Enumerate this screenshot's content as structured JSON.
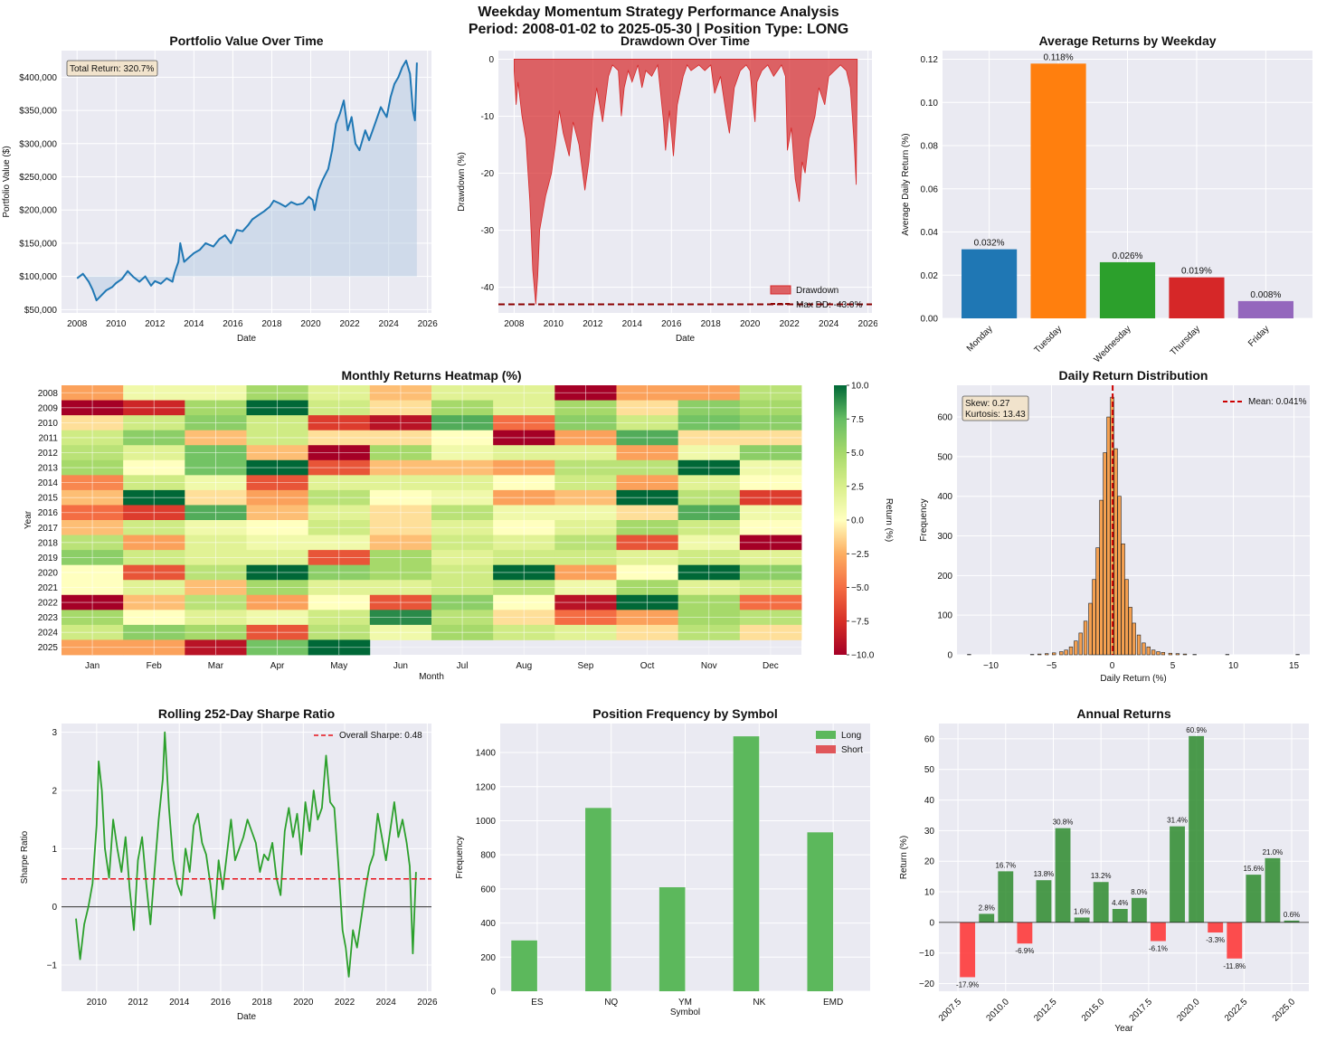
{
  "figure": {
    "title_line1": "Weekday Momentum Strategy Performance Analysis",
    "title_line2": "Period: 2008-01-02 to 2025-05-30 | Position Type: LONG"
  },
  "chart_data": [
    {
      "id": "portfolio",
      "type": "line",
      "title": "Portfolio Value Over Time",
      "xlabel": "Date",
      "ylabel": "Portfolio Value ($)",
      "xlim": [
        2007.2,
        2026.2
      ],
      "ylim": [
        45000,
        440000
      ],
      "xticks": [
        2008,
        2010,
        2012,
        2014,
        2016,
        2018,
        2020,
        2022,
        2024,
        2026
      ],
      "yticks": [
        50000,
        100000,
        150000,
        200000,
        250000,
        300000,
        350000,
        400000
      ],
      "ytick_labels": [
        "$50,000",
        "$100,000",
        "$150,000",
        "$200,000",
        "$250,000",
        "$300,000",
        "$350,000",
        "$400,000"
      ],
      "baseline": 100000,
      "annotation": "Total Return: 320.7%",
      "color": "#1f77b4",
      "fill_color": "#b0c8e0",
      "x": [
        2008.0,
        2008.3,
        2008.6,
        2008.8,
        2009.0,
        2009.2,
        2009.5,
        2009.8,
        2010.0,
        2010.3,
        2010.6,
        2010.9,
        2011.2,
        2011.5,
        2011.8,
        2012.0,
        2012.3,
        2012.6,
        2012.9,
        2013.0,
        2013.2,
        2013.3,
        2013.5,
        2013.8,
        2014.0,
        2014.3,
        2014.6,
        2015.0,
        2015.3,
        2015.6,
        2015.9,
        2016.2,
        2016.5,
        2016.8,
        2017.0,
        2017.3,
        2017.6,
        2017.9,
        2018.1,
        2018.4,
        2018.7,
        2019.0,
        2019.3,
        2019.6,
        2019.9,
        2020.1,
        2020.2,
        2020.4,
        2020.6,
        2020.9,
        2021.1,
        2021.3,
        2021.5,
        2021.7,
        2021.9,
        2022.1,
        2022.3,
        2022.5,
        2022.8,
        2023.0,
        2023.3,
        2023.6,
        2023.9,
        2024.1,
        2024.3,
        2024.5,
        2024.7,
        2024.9,
        2025.1,
        2025.25,
        2025.35,
        2025.45
      ],
      "y": [
        97000,
        104000,
        92000,
        80000,
        64000,
        70000,
        79000,
        84000,
        90000,
        96000,
        108000,
        99000,
        92000,
        100000,
        86000,
        93000,
        89000,
        97000,
        92000,
        105000,
        122000,
        150000,
        122000,
        130000,
        135000,
        140000,
        150000,
        145000,
        156000,
        162000,
        150000,
        170000,
        168000,
        178000,
        186000,
        192000,
        198000,
        205000,
        214000,
        210000,
        205000,
        212000,
        208000,
        210000,
        220000,
        215000,
        200000,
        230000,
        245000,
        262000,
        290000,
        330000,
        345000,
        365000,
        320000,
        340000,
        300000,
        290000,
        320000,
        305000,
        330000,
        355000,
        340000,
        370000,
        390000,
        400000,
        415000,
        425000,
        405000,
        350000,
        335000,
        422000
      ]
    },
    {
      "id": "drawdown",
      "type": "area",
      "title": "Drawdown Over Time",
      "xlabel": "Date",
      "ylabel": "Drawdown (%)",
      "xlim": [
        2007.2,
        2026.2
      ],
      "ylim": [
        -44.5,
        1.5
      ],
      "xticks": [
        2008,
        2010,
        2012,
        2014,
        2016,
        2018,
        2020,
        2022,
        2024,
        2026
      ],
      "yticks": [
        0,
        -10,
        -20,
        -30,
        -40
      ],
      "max_dd": -43.0,
      "legend": [
        "Drawdown",
        "Max DD: -43.0%"
      ],
      "legend_position": "lower right",
      "color": "#d62728",
      "x": [
        2008.0,
        2008.1,
        2008.2,
        2008.4,
        2008.6,
        2008.8,
        2008.95,
        2009.1,
        2009.2,
        2009.3,
        2009.6,
        2009.9,
        2010.1,
        2010.3,
        2010.5,
        2010.8,
        2011.0,
        2011.3,
        2011.6,
        2011.8,
        2012.0,
        2012.2,
        2012.5,
        2012.8,
        2013.0,
        2013.3,
        2013.45,
        2013.6,
        2013.8,
        2014.0,
        2014.3,
        2014.5,
        2014.7,
        2015.0,
        2015.3,
        2015.6,
        2015.7,
        2015.9,
        2016.1,
        2016.3,
        2016.6,
        2016.8,
        2017.0,
        2017.4,
        2017.7,
        2018.0,
        2018.2,
        2018.5,
        2018.8,
        2018.95,
        2019.2,
        2019.5,
        2019.8,
        2020.0,
        2020.15,
        2020.25,
        2020.35,
        2020.6,
        2020.9,
        2021.2,
        2021.4,
        2021.6,
        2021.8,
        2021.9,
        2022.1,
        2022.3,
        2022.5,
        2022.65,
        2022.8,
        2023.0,
        2023.3,
        2023.5,
        2023.8,
        2024.0,
        2024.3,
        2024.6,
        2024.9,
        2025.1,
        2025.2,
        2025.3,
        2025.4,
        2025.45
      ],
      "y": [
        -2,
        -8,
        -4,
        -10,
        -14,
        -25,
        -37,
        -43,
        -38,
        -30,
        -24,
        -20,
        -15,
        -9,
        -13,
        -17,
        -11,
        -15,
        -23,
        -18,
        -10,
        -5,
        -11,
        -3,
        -1,
        -2,
        -10,
        -5,
        -2,
        -4,
        -1,
        -5,
        -2,
        -3,
        -1,
        -11,
        -16,
        -9,
        -17,
        -8,
        -3,
        -1,
        -2,
        -1,
        -2,
        -1,
        -6,
        -3,
        -10,
        -13,
        -5,
        -2,
        -1,
        -2,
        -8,
        -11,
        -4,
        -2,
        -1,
        -3,
        -2,
        -1,
        -3,
        -16,
        -12,
        -21,
        -25,
        -18,
        -20,
        -14,
        -10,
        -5,
        -8,
        -3,
        -2,
        -1,
        -2,
        -5,
        -10,
        -15,
        -22,
        -2
      ]
    },
    {
      "id": "weekday",
      "type": "bar",
      "title": "Average Returns by Weekday",
      "ylabel": "Average Daily Return (%)",
      "categories": [
        "Monday",
        "Tuesday",
        "Wednesday",
        "Thursday",
        "Friday"
      ],
      "values": [
        0.032,
        0.118,
        0.026,
        0.019,
        0.008
      ],
      "value_labels": [
        "0.032%",
        "0.118%",
        "0.026%",
        "0.019%",
        "0.008%"
      ],
      "colors": [
        "#1f77b4",
        "#ff7f0e",
        "#2ca02c",
        "#d62728",
        "#9467bd"
      ],
      "ylim": [
        0,
        0.124
      ],
      "yticks": [
        0.0,
        0.02,
        0.04,
        0.06,
        0.08,
        0.1,
        0.12
      ],
      "ytick_labels": [
        "0.00",
        "0.02",
        "0.04",
        "0.06",
        "0.08",
        "0.10",
        "0.12"
      ]
    },
    {
      "id": "heatmap",
      "type": "heatmap",
      "title": "Monthly Returns Heatmap (%)",
      "xlabel": "Month",
      "ylabel": "Year",
      "colorbar_label": "Return (%)",
      "vmin": -10,
      "vmax": 10,
      "colorbar_ticks": [
        "10.0",
        "7.5",
        "5.0",
        "2.5",
        "0.0",
        "−2.5",
        "−5.0",
        "−7.5",
        "−10.0"
      ],
      "months": [
        "Jan",
        "Feb",
        "Mar",
        "Apr",
        "May",
        "Jun",
        "Jul",
        "Aug",
        "Sep",
        "Oct",
        "Nov",
        "Dec"
      ],
      "years": [
        "2008",
        "2009",
        "2010",
        "2011",
        "2012",
        "2013",
        "2014",
        "2015",
        "2016",
        "2017",
        "2018",
        "2019",
        "2020",
        "2021",
        "2022",
        "2023",
        "2024",
        "2025"
      ],
      "values": [
        [
          -3,
          1,
          1,
          5,
          2,
          -2,
          2,
          2,
          -10,
          -3,
          -3,
          4
        ],
        [
          -10,
          -8,
          5,
          10,
          3,
          -1,
          5,
          2,
          5,
          -1,
          6,
          5
        ],
        [
          -1,
          3,
          6,
          3,
          -7,
          -9,
          8,
          -5,
          6,
          3,
          7,
          6
        ],
        [
          3,
          6,
          -2,
          3,
          -1,
          -1,
          0,
          -10,
          -3,
          8,
          -1,
          -1
        ],
        [
          4,
          2,
          7,
          -2,
          -10,
          5,
          1,
          2,
          2,
          -3,
          1,
          6
        ],
        [
          5,
          0,
          7,
          10,
          -6,
          -2,
          -2,
          -3,
          4,
          4,
          10,
          1
        ],
        [
          -4,
          3,
          1,
          -6,
          2,
          2,
          2,
          0,
          3,
          -3,
          2,
          0
        ],
        [
          -2,
          10,
          -1,
          -3,
          4,
          0,
          1,
          -3,
          -2,
          10,
          4,
          -7
        ],
        [
          -5,
          -7,
          8,
          -2,
          2,
          -1,
          4,
          1,
          1,
          -1,
          8,
          1
        ],
        [
          -2,
          3,
          1,
          0,
          3,
          -1,
          2,
          0,
          2,
          5,
          3,
          0
        ],
        [
          4,
          -3,
          2,
          1,
          1,
          -2,
          3,
          2,
          4,
          -6,
          1,
          -10
        ],
        [
          6,
          3,
          2,
          2,
          -6,
          5,
          2,
          3,
          3,
          2,
          3,
          2
        ],
        [
          0,
          -6,
          4,
          10,
          6,
          5,
          3,
          10,
          -3,
          0,
          10,
          6
        ],
        [
          0,
          2,
          -2,
          5,
          2,
          2,
          3,
          4,
          1,
          5,
          2,
          3
        ],
        [
          -10,
          -2,
          4,
          -3,
          0,
          -6,
          6,
          0,
          -9,
          10,
          5,
          -5
        ],
        [
          5,
          0,
          2,
          1,
          3,
          9,
          4,
          -1,
          -5,
          -3,
          5,
          4
        ],
        [
          3,
          6,
          5,
          -6,
          4,
          1,
          5,
          3,
          2,
          -1,
          4,
          -1
        ],
        [
          -3,
          -3,
          -9,
          7,
          10,
          null,
          null,
          null,
          null,
          null,
          null,
          null
        ]
      ]
    },
    {
      "id": "distribution",
      "type": "bar",
      "title": "Daily Return Distribution",
      "xlabel": "Daily Return (%)",
      "ylabel": "Frequency",
      "xlim": [
        -12.8,
        16.3
      ],
      "ylim": [
        0,
        680
      ],
      "xticks": [
        -10,
        -5,
        0,
        5,
        10,
        15
      ],
      "xtick_labels": [
        "−10",
        "−5",
        "0",
        "5",
        "10",
        "15"
      ],
      "yticks": [
        0,
        100,
        200,
        300,
        400,
        500,
        600
      ],
      "mean": 0.041,
      "legend": [
        "Mean: 0.041%"
      ],
      "legend_position": "upper right",
      "stats_box": [
        "Skew: 0.27",
        "Kurtosis: 13.43"
      ],
      "bar_color": "#f5a050",
      "bin_centers": [
        -11.8,
        -6.6,
        -6.0,
        -5.4,
        -4.8,
        -4.2,
        -3.8,
        -3.4,
        -3.0,
        -2.6,
        -2.2,
        -1.8,
        -1.5,
        -1.2,
        -0.9,
        -0.6,
        -0.3,
        0.0,
        0.3,
        0.6,
        0.9,
        1.2,
        1.5,
        1.8,
        2.2,
        2.6,
        3.0,
        3.4,
        3.8,
        4.2,
        4.8,
        5.4,
        6.0,
        6.8,
        9.5,
        15.3
      ],
      "frequencies": [
        1,
        1,
        2,
        3,
        5,
        8,
        12,
        20,
        35,
        55,
        85,
        130,
        190,
        270,
        390,
        510,
        600,
        650,
        520,
        400,
        280,
        190,
        120,
        80,
        50,
        30,
        20,
        12,
        8,
        6,
        4,
        3,
        2,
        1,
        1,
        1
      ]
    },
    {
      "id": "sharpe",
      "type": "line",
      "title": "Rolling 252-Day Sharpe Ratio",
      "xlabel": "Date",
      "ylabel": "Sharpe Ratio",
      "xlim": [
        2008.3,
        2026.2
      ],
      "ylim": [
        -1.45,
        3.15
      ],
      "xticks": [
        2010,
        2012,
        2014,
        2016,
        2018,
        2020,
        2022,
        2024,
        2026
      ],
      "yticks": [
        -1,
        0,
        1,
        2,
        3
      ],
      "yticks_labels": [
        "−1",
        "0",
        "1",
        "2",
        "3"
      ],
      "overall_sharpe": 0.48,
      "legend": [
        "Overall Sharpe: 0.48"
      ],
      "legend_position": "upper right",
      "color": "#2ca02c",
      "x": [
        2009.0,
        2009.2,
        2009.4,
        2009.6,
        2009.8,
        2010.0,
        2010.1,
        2010.25,
        2010.4,
        2010.6,
        2010.8,
        2011.0,
        2011.2,
        2011.4,
        2011.6,
        2011.8,
        2012.0,
        2012.2,
        2012.4,
        2012.6,
        2012.8,
        2013.0,
        2013.2,
        2013.3,
        2013.5,
        2013.7,
        2013.9,
        2014.1,
        2014.3,
        2014.5,
        2014.7,
        2014.9,
        2015.1,
        2015.3,
        2015.5,
        2015.7,
        2015.9,
        2016.1,
        2016.3,
        2016.5,
        2016.7,
        2016.9,
        2017.1,
        2017.3,
        2017.5,
        2017.7,
        2017.9,
        2018.1,
        2018.3,
        2018.5,
        2018.7,
        2018.9,
        2019.1,
        2019.3,
        2019.5,
        2019.7,
        2019.9,
        2020.1,
        2020.3,
        2020.5,
        2020.7,
        2020.9,
        2021.1,
        2021.3,
        2021.5,
        2021.7,
        2021.9,
        2022.05,
        2022.2,
        2022.4,
        2022.6,
        2022.8,
        2023.0,
        2023.2,
        2023.4,
        2023.6,
        2023.8,
        2024.0,
        2024.2,
        2024.4,
        2024.6,
        2024.8,
        2025.0,
        2025.15,
        2025.3,
        2025.45
      ],
      "y": [
        -0.2,
        -0.9,
        -0.3,
        0.0,
        0.4,
        1.4,
        2.5,
        2.0,
        1.0,
        0.5,
        1.5,
        1.0,
        0.6,
        1.2,
        0.3,
        -0.4,
        0.8,
        1.2,
        0.4,
        -0.3,
        0.6,
        1.5,
        2.2,
        3.0,
        1.7,
        0.8,
        0.4,
        0.2,
        1.0,
        0.6,
        1.4,
        1.6,
        1.1,
        0.9,
        0.4,
        -0.2,
        0.8,
        0.3,
        0.9,
        1.5,
        0.8,
        1.0,
        1.2,
        1.5,
        1.3,
        1.1,
        0.6,
        0.9,
        0.8,
        1.1,
        0.5,
        0.2,
        1.3,
        1.7,
        1.2,
        1.6,
        0.9,
        1.8,
        1.3,
        2.0,
        1.5,
        1.7,
        2.6,
        1.8,
        1.7,
        0.7,
        -0.4,
        -0.7,
        -1.2,
        -0.4,
        -0.7,
        -0.2,
        0.3,
        0.7,
        0.9,
        1.6,
        1.2,
        0.8,
        1.3,
        1.8,
        1.2,
        1.5,
        1.1,
        0.7,
        -0.8,
        0.6
      ]
    },
    {
      "id": "positions",
      "type": "bar",
      "title": "Position Frequency by Symbol",
      "xlabel": "Symbol",
      "ylabel": "Frequency",
      "categories": [
        "ES",
        "NQ",
        "YM",
        "NK",
        "EMD"
      ],
      "series": [
        {
          "name": "Long",
          "values": [
            298,
            1075,
            610,
            1495,
            932
          ],
          "color": "#5cb85c"
        },
        {
          "name": "Short",
          "values": [
            0,
            0,
            0,
            0,
            0
          ],
          "color": "#e0565a"
        }
      ],
      "legend_position": "upper right",
      "ylim": [
        0,
        1570
      ],
      "yticks": [
        0,
        200,
        400,
        600,
        800,
        1000,
        1200,
        1400
      ]
    },
    {
      "id": "annual",
      "type": "bar",
      "title": "Annual Returns",
      "xlabel": "Year",
      "ylabel": "Return (%)",
      "years": [
        2008,
        2009,
        2010,
        2011,
        2012,
        2013,
        2014,
        2015,
        2016,
        2017,
        2018,
        2019,
        2020,
        2021,
        2022,
        2023,
        2024,
        2025
      ],
      "values": [
        -17.9,
        2.8,
        16.7,
        -6.9,
        13.8,
        30.8,
        1.6,
        13.2,
        4.4,
        8.0,
        -6.1,
        31.4,
        60.9,
        -3.3,
        -11.8,
        15.6,
        21.0,
        0.6
      ],
      "value_labels": [
        "-17.9%",
        "2.8%",
        "16.7%",
        "-6.9%",
        "13.8%",
        "30.8%",
        "1.6%",
        "13.2%",
        "4.4%",
        "8.0%",
        "-6.1%",
        "31.4%",
        "60.9%",
        "-3.3%",
        "-11.8%",
        "15.6%",
        "21.0%",
        "0.6%"
      ],
      "positive_color": "#2e8b2e",
      "negative_color": "#ff3030",
      "xlim": [
        2006.5,
        2025.9
      ],
      "ylim": [
        -22.5,
        65
      ],
      "xticks": [
        2007.5,
        2010.0,
        2012.5,
        2015.0,
        2017.5,
        2020.0,
        2022.5,
        2025.0
      ],
      "xtick_labels": [
        "2007.5",
        "2010.0",
        "2012.5",
        "2015.0",
        "2017.5",
        "2020.0",
        "2022.5",
        "2025.0"
      ],
      "yticks": [
        -20,
        -10,
        0,
        10,
        20,
        30,
        40,
        50,
        60
      ],
      "ytick_labels": [
        "−20",
        "−10",
        "0",
        "10",
        "20",
        "30",
        "40",
        "50",
        "60"
      ]
    }
  ]
}
